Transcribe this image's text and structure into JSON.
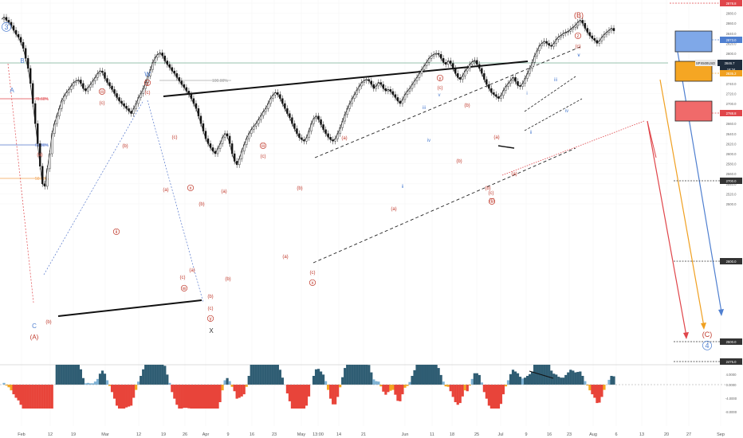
{
  "chart_data": {
    "type": "line",
    "symbol": "SPX500USD",
    "price_tag_current": "2846.7",
    "price_tag_countdown": "18:34",
    "price_tag_alt": "2835.2",
    "yaxis_labels": [
      "2900.0",
      "2880.0",
      "2860.0",
      "2840.0",
      "2820.0",
      "2800.0",
      "2780.0",
      "2760.0",
      "2740.0",
      "2720.0",
      "2700.0",
      "2680.0",
      "2660.0",
      "2640.0",
      "2620.0",
      "2600.0",
      "2580.0",
      "2560.0",
      "2540.0",
      "2520.0",
      "2500.0"
    ],
    "level_tags": [
      "2878.8",
      "2873.0",
      "2850.9",
      "2788.8",
      "2700.0",
      "2600.0",
      "2500.0",
      "2475.0"
    ],
    "xaxis_labels": [
      "Feb",
      "12",
      "19",
      "Mar",
      "12",
      "19",
      "26",
      "Apr",
      "9",
      "16",
      "23",
      "May",
      "13:00",
      "14",
      "21",
      "Jun",
      "11",
      "18",
      "25",
      "Jul",
      "9",
      "16",
      "23",
      "Aug",
      "6",
      "13",
      "20",
      "27",
      "Sep"
    ],
    "fib_labels": [
      "78.60%",
      "61.80%",
      "50.00%",
      "100.00%"
    ],
    "oscillator_labels": [
      "4.0000",
      "0.0000",
      "-4.0000",
      "-8.0000"
    ],
    "wave_labels": [
      "3",
      "A",
      "B",
      "C",
      "(A)",
      "(b)",
      "(a)",
      "(c)",
      "iii",
      "ii",
      "W",
      "y",
      "(c)",
      "(b)",
      "(a)",
      "(c)",
      "(a)",
      "(b)",
      "x",
      "(b)",
      "(c)",
      "(a)",
      "w",
      "(b)",
      "(c)",
      "y",
      "X",
      "iii",
      "(c)",
      "(a)",
      "(b)",
      "(a)",
      "(c)",
      "x",
      "(a)",
      "(b)",
      "ii",
      "iii",
      "iv",
      "v",
      "y",
      "(c)",
      "(b)",
      "(a)",
      "(c)",
      "(a)",
      "(c)",
      "(b)",
      "x",
      "i",
      "ii",
      "iii",
      "iv",
      "v",
      "(B)",
      "Y",
      "z",
      "(c)",
      "v",
      "(C)",
      "4"
    ],
    "series": [
      {
        "values": [
          2868,
          2872,
          2866,
          2862,
          2855,
          2846,
          2838,
          2832,
          2822,
          2810,
          2790,
          2770,
          2740,
          2700,
          2660,
          2620,
          2575,
          2540,
          2535,
          2570,
          2600,
          2640,
          2660,
          2675,
          2690,
          2705,
          2715,
          2722,
          2728,
          2735,
          2742,
          2745,
          2747,
          2740,
          2730,
          2725,
          2732,
          2738,
          2745,
          2752,
          2760,
          2765,
          2762,
          2750,
          2742,
          2735,
          2728,
          2720,
          2712,
          2705,
          2700,
          2695,
          2690,
          2685,
          2680,
          2690,
          2700,
          2712,
          2720,
          2730,
          2742,
          2755,
          2768,
          2782,
          2792,
          2798,
          2801,
          2795,
          2785,
          2778,
          2772,
          2765,
          2760,
          2752,
          2745,
          2738,
          2732,
          2725,
          2718,
          2710,
          2700,
          2690,
          2675,
          2660,
          2645,
          2630,
          2620,
          2612,
          2605,
          2600,
          2610,
          2620,
          2632,
          2640,
          2635,
          2620,
          2600,
          2585,
          2578,
          2590,
          2605,
          2618,
          2630,
          2640,
          2648,
          2655,
          2660,
          2668,
          2676,
          2684,
          2690,
          2700,
          2710,
          2717,
          2722,
          2718,
          2710,
          2700,
          2690,
          2680,
          2672,
          2660,
          2650,
          2640,
          2632,
          2628,
          2625,
          2632,
          2645,
          2660,
          2670,
          2675,
          2668,
          2658,
          2648,
          2640,
          2633,
          2628,
          2625,
          2630,
          2640,
          2652,
          2665,
          2678,
          2690,
          2700,
          2710,
          2718,
          2727,
          2735,
          2742,
          2746,
          2748,
          2745,
          2738,
          2730,
          2735,
          2742,
          2738,
          2730,
          2725,
          2728,
          2724,
          2718,
          2712,
          2705,
          2700,
          2708,
          2718,
          2725,
          2730,
          2738,
          2745,
          2752,
          2760,
          2768,
          2775,
          2782,
          2790,
          2795,
          2798,
          2800,
          2798,
          2790,
          2782,
          2778,
          2785,
          2780,
          2770,
          2760,
          2752,
          2748,
          2755,
          2765,
          2770,
          2778,
          2783,
          2786,
          2778,
          2770,
          2760,
          2748,
          2738,
          2730,
          2722,
          2718,
          2714,
          2710,
          2716,
          2726,
          2734,
          2740,
          2746,
          2752,
          2744,
          2736,
          2734,
          2740,
          2750,
          2760,
          2770,
          2782,
          2795,
          2805,
          2815,
          2820,
          2824,
          2820,
          2816,
          2814,
          2820,
          2828,
          2833,
          2836,
          2840,
          2842,
          2844,
          2848,
          2852,
          2856,
          2862,
          2866,
          2860,
          2850,
          2842,
          2835,
          2830,
          2826,
          2820,
          2825,
          2832,
          2838,
          2842,
          2846,
          2850,
          2845
        ]
      }
    ]
  }
}
